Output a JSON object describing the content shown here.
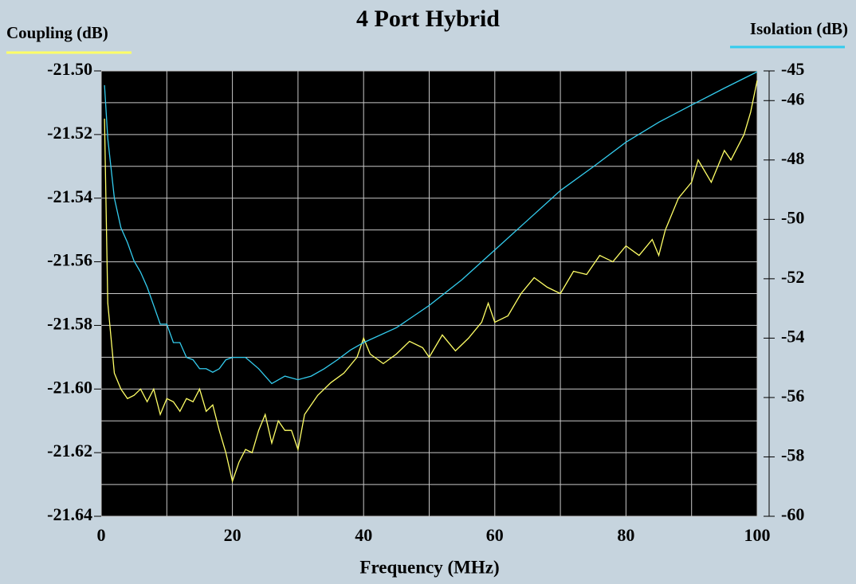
{
  "chart_data": {
    "type": "line",
    "title": "4 Port Hybrid",
    "xlabel": "Frequency (MHz)",
    "xlim": [
      0,
      100
    ],
    "xticks": [
      0,
      20,
      40,
      60,
      80,
      100
    ],
    "xgridlines": [
      0,
      10,
      20,
      30,
      40,
      50,
      60,
      70,
      80,
      90,
      100
    ],
    "ylim": [
      -21.64,
      -21.5
    ],
    "yticks": [
      {
        "value": -21.5,
        "label": "-21.50"
      },
      -21.52,
      -21.54,
      -21.56,
      -21.58,
      {
        "value": -21.6,
        "label": "-21.60"
      },
      -21.62,
      -21.64
    ],
    "ygridlines": [
      -21.64,
      -21.63,
      -21.62,
      -21.61,
      -21.6,
      -21.59,
      -21.58,
      -21.57,
      -21.56,
      -21.55,
      -21.54,
      -21.53,
      -21.52,
      -21.51,
      -21.5
    ],
    "y2lim": [
      -60,
      -45
    ],
    "y2ticks": [
      -45,
      -46,
      -48,
      -50,
      -52,
      -54,
      -56,
      -58,
      -60
    ],
    "plot_background": "#000000",
    "grid_color": "#c8c8c8",
    "series": [
      {
        "name": "Coupling (dB)",
        "color": "#ffff66",
        "axis": "y",
        "x": [
          0.5,
          1,
          2,
          3,
          4,
          5,
          6,
          7,
          8,
          9,
          10,
          11,
          12,
          13,
          14,
          15,
          16,
          17,
          18,
          19,
          20,
          21,
          22,
          23,
          24,
          25,
          26,
          27,
          28,
          29,
          30,
          31,
          32,
          33,
          35,
          37,
          39,
          40,
          41,
          43,
          45,
          47,
          49,
          50,
          52,
          54,
          56,
          58,
          59,
          60,
          62,
          64,
          66,
          68,
          70,
          72,
          74,
          76,
          78,
          80,
          82,
          84,
          85,
          86,
          88,
          90,
          91,
          93,
          95,
          96,
          97,
          98,
          99,
          100
        ],
        "values": [
          -21.515,
          -21.573,
          -21.595,
          -21.6,
          -21.603,
          -21.602,
          -21.6,
          -21.604,
          -21.6,
          -21.608,
          -21.603,
          -21.604,
          -21.607,
          -21.603,
          -21.604,
          -21.6,
          -21.607,
          -21.605,
          -21.613,
          -21.62,
          -21.629,
          -21.623,
          -21.619,
          -21.62,
          -21.613,
          -21.608,
          -21.617,
          -21.61,
          -21.613,
          -21.613,
          -21.619,
          -21.608,
          -21.605,
          -21.602,
          -21.598,
          -21.595,
          -21.59,
          -21.584,
          -21.589,
          -21.592,
          -21.589,
          -21.585,
          -21.587,
          -21.59,
          -21.583,
          -21.588,
          -21.584,
          -21.579,
          -21.573,
          -21.579,
          -21.577,
          -21.57,
          -21.565,
          -21.568,
          -21.57,
          -21.563,
          -21.564,
          -21.558,
          -21.56,
          -21.555,
          -21.558,
          -21.553,
          -21.558,
          -21.55,
          -21.54,
          -21.535,
          -21.528,
          -21.535,
          -21.525,
          -21.528,
          -21.524,
          -21.52,
          -21.513,
          -21.503
        ]
      },
      {
        "name": "Isolation (dB)",
        "color": "#33ccee",
        "axis": "y2",
        "x": [
          0.5,
          1,
          2,
          3,
          4,
          5,
          6,
          7,
          8,
          9,
          10,
          11,
          12,
          13,
          14,
          15,
          16,
          17,
          18,
          19,
          20,
          22,
          24,
          26,
          28,
          30,
          32,
          34,
          36,
          38,
          40,
          45,
          50,
          55,
          60,
          65,
          70,
          75,
          80,
          85,
          90,
          95,
          100
        ],
        "values": [
          -45.48,
          -47.28,
          -49.28,
          -50.28,
          -50.78,
          -51.4,
          -51.78,
          -52.28,
          -52.9,
          -53.53,
          -53.53,
          -54.15,
          -54.15,
          -54.65,
          -54.73,
          -55.03,
          -55.03,
          -55.15,
          -55.03,
          -54.73,
          -54.65,
          -54.65,
          -55.03,
          -55.53,
          -55.28,
          -55.4,
          -55.28,
          -55.03,
          -54.73,
          -54.4,
          -54.15,
          -53.65,
          -52.9,
          -52.03,
          -51.03,
          -50.03,
          -49.03,
          -48.23,
          -47.4,
          -46.73,
          -46.15,
          -45.58,
          -45.03
        ]
      }
    ]
  }
}
